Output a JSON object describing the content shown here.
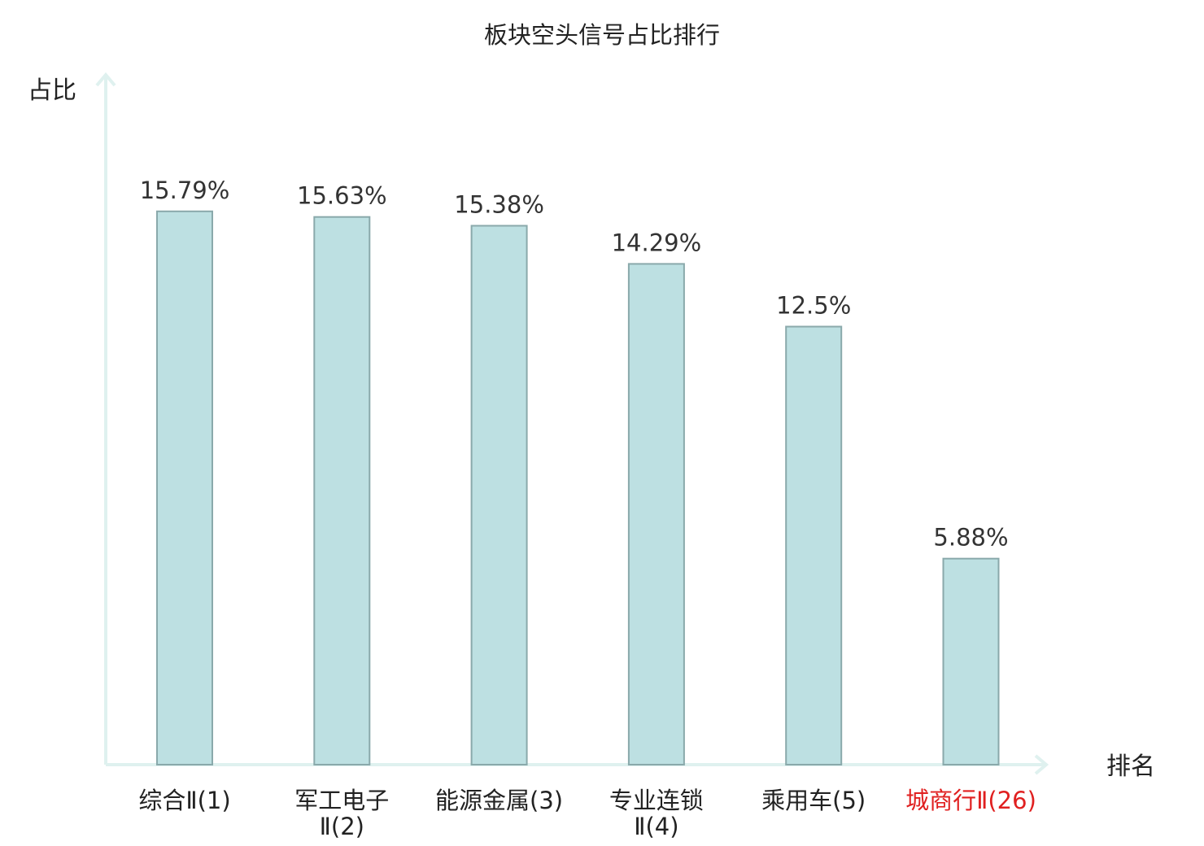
{
  "chart_data": {
    "type": "bar",
    "title": "板块空头信号占比排行",
    "xlabel": "排名",
    "ylabel": "占比",
    "categories": [
      [
        "综合Ⅱ(1)"
      ],
      [
        "军工电子",
        "Ⅱ(2)"
      ],
      [
        "能源金属(3)"
      ],
      [
        "专业连锁",
        "Ⅱ(4)"
      ],
      [
        "乘用车(5)"
      ],
      [
        "城商行Ⅱ(26)"
      ]
    ],
    "values": [
      15.79,
      15.63,
      15.38,
      14.29,
      12.5,
      5.88
    ],
    "value_labels": [
      "15.79%",
      "15.63%",
      "15.38%",
      "14.29%",
      "12.5%",
      "5.88%"
    ],
    "ylim": [
      0,
      19.5
    ],
    "grid": false,
    "legend": "none",
    "colors": {
      "bar_fill": "#bde0e2",
      "bar_stroke": "#8aa9ab",
      "axis": "#dff1ef",
      "label_default": "#222222",
      "label_highlight": "#e02020"
    },
    "highlight_index": 5
  }
}
